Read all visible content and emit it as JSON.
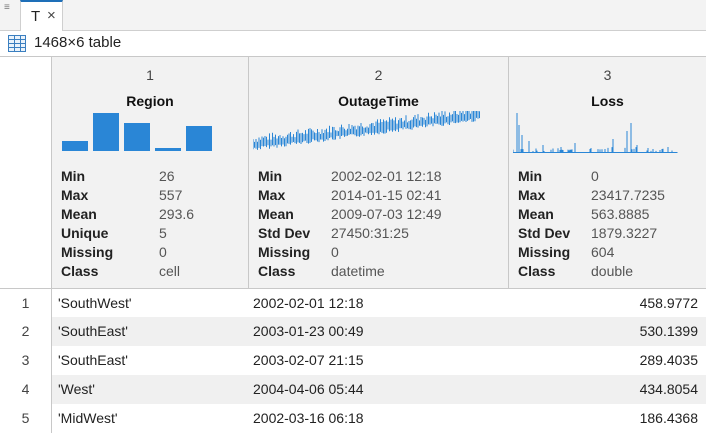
{
  "tab": {
    "label": "T",
    "close_glyph": "×",
    "menu_icon": "menu-icon"
  },
  "info": {
    "text": "1468×6 table",
    "icon": "table-icon"
  },
  "columns": [
    {
      "index": "1",
      "name": "Region",
      "stats": [
        {
          "k": "Min",
          "v": "26"
        },
        {
          "k": "Max",
          "v": "557"
        },
        {
          "k": "Mean",
          "v": "293.6"
        },
        {
          "k": "Unique",
          "v": "5"
        },
        {
          "k": "Missing",
          "v": "0"
        },
        {
          "k": "Class",
          "v": "cell"
        }
      ]
    },
    {
      "index": "2",
      "name": "OutageTime",
      "stats": [
        {
          "k": "Min",
          "v": "2002-02-01 12:18"
        },
        {
          "k": "Max",
          "v": "2014-01-15 02:41"
        },
        {
          "k": "Mean",
          "v": "2009-07-03 12:49"
        },
        {
          "k": "Std Dev",
          "v": "27450:31:25"
        },
        {
          "k": "Missing",
          "v": "0"
        },
        {
          "k": "Class",
          "v": "datetime"
        }
      ]
    },
    {
      "index": "3",
      "name": "Loss",
      "stats": [
        {
          "k": "Min",
          "v": "0"
        },
        {
          "k": "Max",
          "v": "23417.7235"
        },
        {
          "k": "Mean",
          "v": "563.8885"
        },
        {
          "k": "Std Dev",
          "v": "1879.3227"
        },
        {
          "k": "Missing",
          "v": "604"
        },
        {
          "k": "Class",
          "v": "double"
        }
      ]
    }
  ],
  "rows": [
    {
      "num": "1",
      "region": "'SouthWest'",
      "time": "2002-02-01 12:18",
      "loss": "458.9772"
    },
    {
      "num": "2",
      "region": "'SouthEast'",
      "time": "2003-01-23 00:49",
      "loss": "530.1399"
    },
    {
      "num": "3",
      "region": "'SouthEast'",
      "time": "2003-02-07 21:15",
      "loss": "289.4035"
    },
    {
      "num": "4",
      "region": "'West'",
      "time": "2004-04-06 05:44",
      "loss": "434.8054"
    },
    {
      "num": "5",
      "region": "'MidWest'",
      "time": "2002-03-16 06:18",
      "loss": "186.4368"
    }
  ],
  "colors": {
    "accent": "#1e6fb8",
    "spark": "#2a86d6",
    "header_bg": "#f2f2f2",
    "alt_row": "#f0f0f0"
  }
}
